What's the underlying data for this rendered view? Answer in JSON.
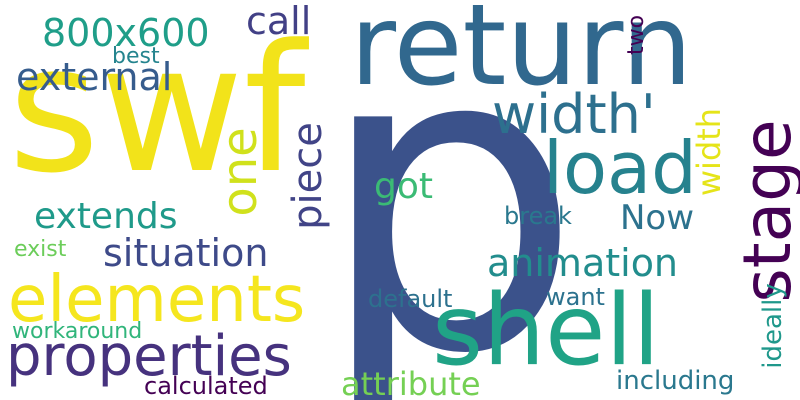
{
  "words": {
    "p": {
      "text": "p",
      "color": "#3b528b"
    },
    "swf": {
      "text": "swf",
      "color": "#f2e31a"
    },
    "return": {
      "text": "return",
      "color": "#31688e"
    },
    "shell": {
      "text": "shell",
      "color": "#20a386"
    },
    "elements": {
      "text": "elements",
      "color": "#f5e61e"
    },
    "properties": {
      "text": "properties",
      "color": "#46327e"
    },
    "load": {
      "text": "load",
      "color": "#26828e"
    },
    "stage": {
      "text": "stage",
      "color": "#440154"
    },
    "width_q": {
      "text": "width'",
      "color": "#2d708e"
    },
    "one": {
      "text": "one",
      "color": "#d0e11c"
    },
    "800x600": {
      "text": "800x600",
      "color": "#1f9e89"
    },
    "external": {
      "text": "external",
      "color": "#365c8d"
    },
    "call": {
      "text": "call",
      "color": "#424086"
    },
    "piece": {
      "text": "piece",
      "color": "#414487"
    },
    "got": {
      "text": "got",
      "color": "#3bbb75"
    },
    "extends": {
      "text": "extends",
      "color": "#1f9a8a"
    },
    "situation": {
      "text": "situation",
      "color": "#3e4a89"
    },
    "animation": {
      "text": "animation",
      "color": "#228d8d"
    },
    "now": {
      "text": "Now",
      "color": "#2c728e"
    },
    "width": {
      "text": "width",
      "color": "#e5e419"
    },
    "best": {
      "text": "best",
      "color": "#25848e"
    },
    "two": {
      "text": "two",
      "color": "#440154"
    },
    "break": {
      "text": "break",
      "color": "#2a788e"
    },
    "exist": {
      "text": "exist",
      "color": "#6ccd5a"
    },
    "default": {
      "text": "default",
      "color": "#2d718e"
    },
    "want": {
      "text": "want",
      "color": "#2c728e"
    },
    "workaround": {
      "text": "workaround",
      "color": "#31b57b"
    },
    "ideally": {
      "text": "ideally",
      "color": "#1f988b"
    },
    "attribute": {
      "text": "attribute",
      "color": "#75d054"
    },
    "including": {
      "text": "including",
      "color": "#2a788e"
    },
    "calculated": {
      "text": "calculated",
      "color": "#440154"
    }
  }
}
